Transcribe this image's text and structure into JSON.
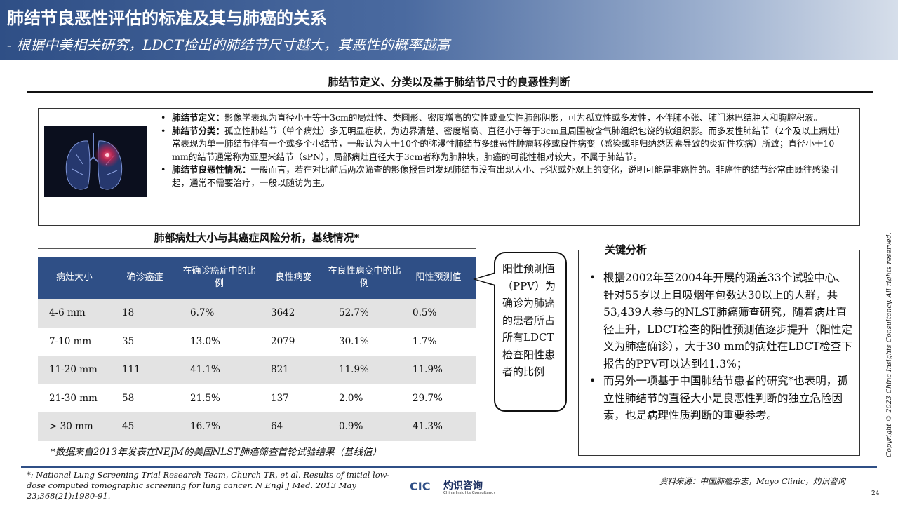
{
  "header": {
    "title": "肺结节良恶性评估的标准及其与肺癌的关系",
    "subtitle": "- 根据中美相关研究，LDCT检出的肺结节尺寸越大，其恶性的概率越高"
  },
  "section_title": "肺结节定义、分类以及基于肺结节尺寸的良恶性判断",
  "definitions": [
    {
      "term": "肺结节定义：",
      "text": "影像学表现为直径小于等于3cm的局灶性、类圆形、密度增高的实性或亚实性肺部阴影，可为孤立性或多发性，不伴肺不张、肺门淋巴结肿大和胸腔积液。"
    },
    {
      "term": "肺结节分类：",
      "text": "孤立性肺结节（单个病灶）多无明显症状，为边界清楚、密度增高、直径小于等于3cm且周围被含气肺组织包饶的软组织影。而多发性肺结节（2个及以上病灶）常表现为单一肺结节伴有一个或多个小结节，一般认为大于10个的弥漫性肺结节多维恶性肿瘤转移或良性病变（感染或非归纳然因素导致的炎症性疾病）所致；直径小于10 mm的结节通常称为亚厘米结节（sPN），局部病灶直径大于3cm者称为肺肿块，肺癌的可能性相对较大，不属于肺结节。"
    },
    {
      "term": "肺结节良恶性情况：",
      "text": "一般而言，若在对比前后两次筛查的影像报告时发现肺结节没有出现大小、形状或外观上的变化，说明可能是非癌性的。非癌性的结节经常由既往感染引起，通常不需要治疗，一般以随访为主。"
    }
  ],
  "table": {
    "title": "肺部病灶大小与其癌症风险分析，基线情况*",
    "headers": [
      "病灶大小",
      "确诊癌症",
      "在确诊癌症中的比例",
      "良性病变",
      "在良性病变中的比例",
      "阳性预测值"
    ],
    "rows": [
      [
        "4-6 mm",
        "18",
        "6.7%",
        "3642",
        "52.7%",
        "0.5%"
      ],
      [
        "7-10 mm",
        "35",
        "13.0%",
        "2079",
        "30.1%",
        "1.7%"
      ],
      [
        "11-20 mm",
        "111",
        "41.1%",
        "821",
        "11.9%",
        "11.9%"
      ],
      [
        "21-30 mm",
        "58",
        "21.5%",
        "137",
        "2.0%",
        "29.7%"
      ],
      [
        "> 30 mm",
        "45",
        "16.7%",
        "64",
        "0.9%",
        "41.3%"
      ]
    ],
    "note": "*数据来自2013年发表在NEJM的美国NLST肺癌筛查首轮试验结果（基线值）"
  },
  "callout": "阳性预测值（PPV）为确诊为肺癌的患者所占所有LDCT检查阳性患者的比例",
  "key_analysis": {
    "title": "关键分析",
    "items": [
      "根据2002年至2004年开展的涵盖33个试验中心、针对55岁以上且吸烟年包数达30以上的人群，共53,439人参与的NLST肺癌筛查研究，随着病灶直径上升，LDCT检查的阳性预测值逐步提升（阳性定义为肺癌确诊），大于30 mm的病灶在LDCT检查下报告的PPV可以达到41.3%；",
      "而另外一项基于中国肺结节患者的研究*也表明，孤立性肺结节的直径大小是良恶性判断的独立危险因素，也是病理性质判断的重要参考。"
    ]
  },
  "copyright": "Copyright © 2023 China Insights Consultancy. All rights reserved.",
  "footnote": "*: National Lung Screening Trial Research Team, Church TR, et al. Results of initial low-dose computed tomographic screening for lung cancer. N Engl J Med. 2013 May 23;368(21):1980-91.",
  "logo": {
    "mark": "CIC",
    "cn": "灼识咨询",
    "en": "China Insights Consultancy"
  },
  "source": "资料来源：中国肺癌杂志，Mayo Clinic，灼识咨询",
  "page_number": "24",
  "colors": {
    "header_blue": "#2f4f86",
    "row_alt": "#e3e3e3"
  }
}
